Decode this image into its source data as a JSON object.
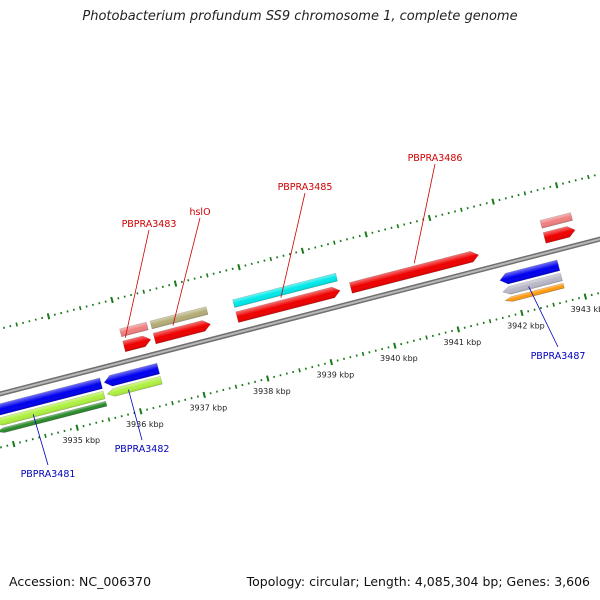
{
  "title": "Photobacterium profundum SS9 chromosome 1, complete genome",
  "footer": {
    "accession": "Accession: NC_006370",
    "topology": "Topology: circular; Length: 4,085,304 bp; Genes: 3,606"
  },
  "colors": {
    "backbone": "#8c8c8c",
    "tick": "#1a7a1a",
    "forward_label": "#cc0000",
    "reverse_label": "#0000bb"
  },
  "ruler": {
    "unit": "kbp",
    "ticks": [
      {
        "kbp": 3935,
        "label": "3935 kbp"
      },
      {
        "kbp": 3936,
        "label": "3936 kbp"
      },
      {
        "kbp": 3937,
        "label": "3937 kbp"
      },
      {
        "kbp": 3938,
        "label": "3938 kbp"
      },
      {
        "kbp": 3939,
        "label": "3939 kbp"
      },
      {
        "kbp": 3940,
        "label": "3940 kbp"
      },
      {
        "kbp": 3941,
        "label": "3941 kbp"
      },
      {
        "kbp": 3942,
        "label": "3942 kbp"
      },
      {
        "kbp": 3943,
        "label": "3943 kbp"
      }
    ]
  },
  "features": {
    "forward": [
      {
        "name": "PBPRA3483",
        "start_kbp": 3936.0,
        "end_kbp": 3936.42,
        "color": "#ee0000"
      },
      {
        "name": "hslO",
        "start_kbp": 3936.48,
        "end_kbp": 3937.36,
        "color": "#ee0000"
      },
      {
        "name": "PBPRA3485",
        "start_kbp": 3937.78,
        "end_kbp": 3939.4,
        "color": "#ee0000"
      },
      {
        "name": "PBPRA3486",
        "start_kbp": 3939.57,
        "end_kbp": 3941.58,
        "color": "#ee0000"
      },
      {
        "name": "",
        "start_kbp": 3942.62,
        "end_kbp": 3943.1,
        "color": "#ee0000"
      }
    ],
    "reverse": [
      {
        "name": "PBPRA3481",
        "start_kbp": 3933.8,
        "end_kbp": 3935.52,
        "color": "#0000ee"
      },
      {
        "name": "PBPRA3482",
        "start_kbp": 3935.57,
        "end_kbp": 3936.42,
        "color": "#0000ee"
      },
      {
        "name": "PBPRA3487",
        "start_kbp": 3941.8,
        "end_kbp": 3942.72,
        "color": "#0000ee"
      }
    ]
  },
  "cog_tracks": {
    "outer": [
      {
        "start_kbp": 3936.0,
        "end_kbp": 3936.42,
        "color": "#f08080"
      },
      {
        "start_kbp": 3936.48,
        "end_kbp": 3937.36,
        "color": "#b5ae78"
      },
      {
        "start_kbp": 3937.78,
        "end_kbp": 3939.4,
        "color": "#00e8e8"
      },
      {
        "start_kbp": 3942.62,
        "end_kbp": 3943.1,
        "color": "#f08080"
      }
    ],
    "inner": [
      {
        "start_kbp": 3933.8,
        "end_kbp": 3935.52,
        "color": "#aef040"
      },
      {
        "start_kbp": 3935.57,
        "end_kbp": 3936.42,
        "color": "#aef040"
      },
      {
        "start_kbp": 3941.8,
        "end_kbp": 3942.72,
        "color": "#b8b8c8"
      }
    ],
    "inner2": [
      {
        "start_kbp": 3933.8,
        "end_kbp": 3935.52,
        "color": "#2a8a2a"
      },
      {
        "start_kbp": 3941.8,
        "end_kbp": 3942.72,
        "color": "#ff9a10"
      }
    ]
  },
  "gene_labels": [
    {
      "text": "PBPRA3483",
      "strand": "forward",
      "anchor_kbp": 3936.05
    },
    {
      "text": "hslO",
      "strand": "forward",
      "anchor_kbp": 3936.8
    },
    {
      "text": "PBPRA3485",
      "strand": "forward",
      "anchor_kbp": 3938.5
    },
    {
      "text": "PBPRA3486",
      "strand": "forward",
      "anchor_kbp": 3940.6
    },
    {
      "text": "PBPRA3481",
      "strand": "reverse",
      "anchor_kbp": 3934.4
    },
    {
      "text": "PBPRA3482",
      "strand": "reverse",
      "anchor_kbp": 3935.9
    },
    {
      "text": "PBPRA3487",
      "strand": "reverse",
      "anchor_kbp": 3942.2
    }
  ]
}
